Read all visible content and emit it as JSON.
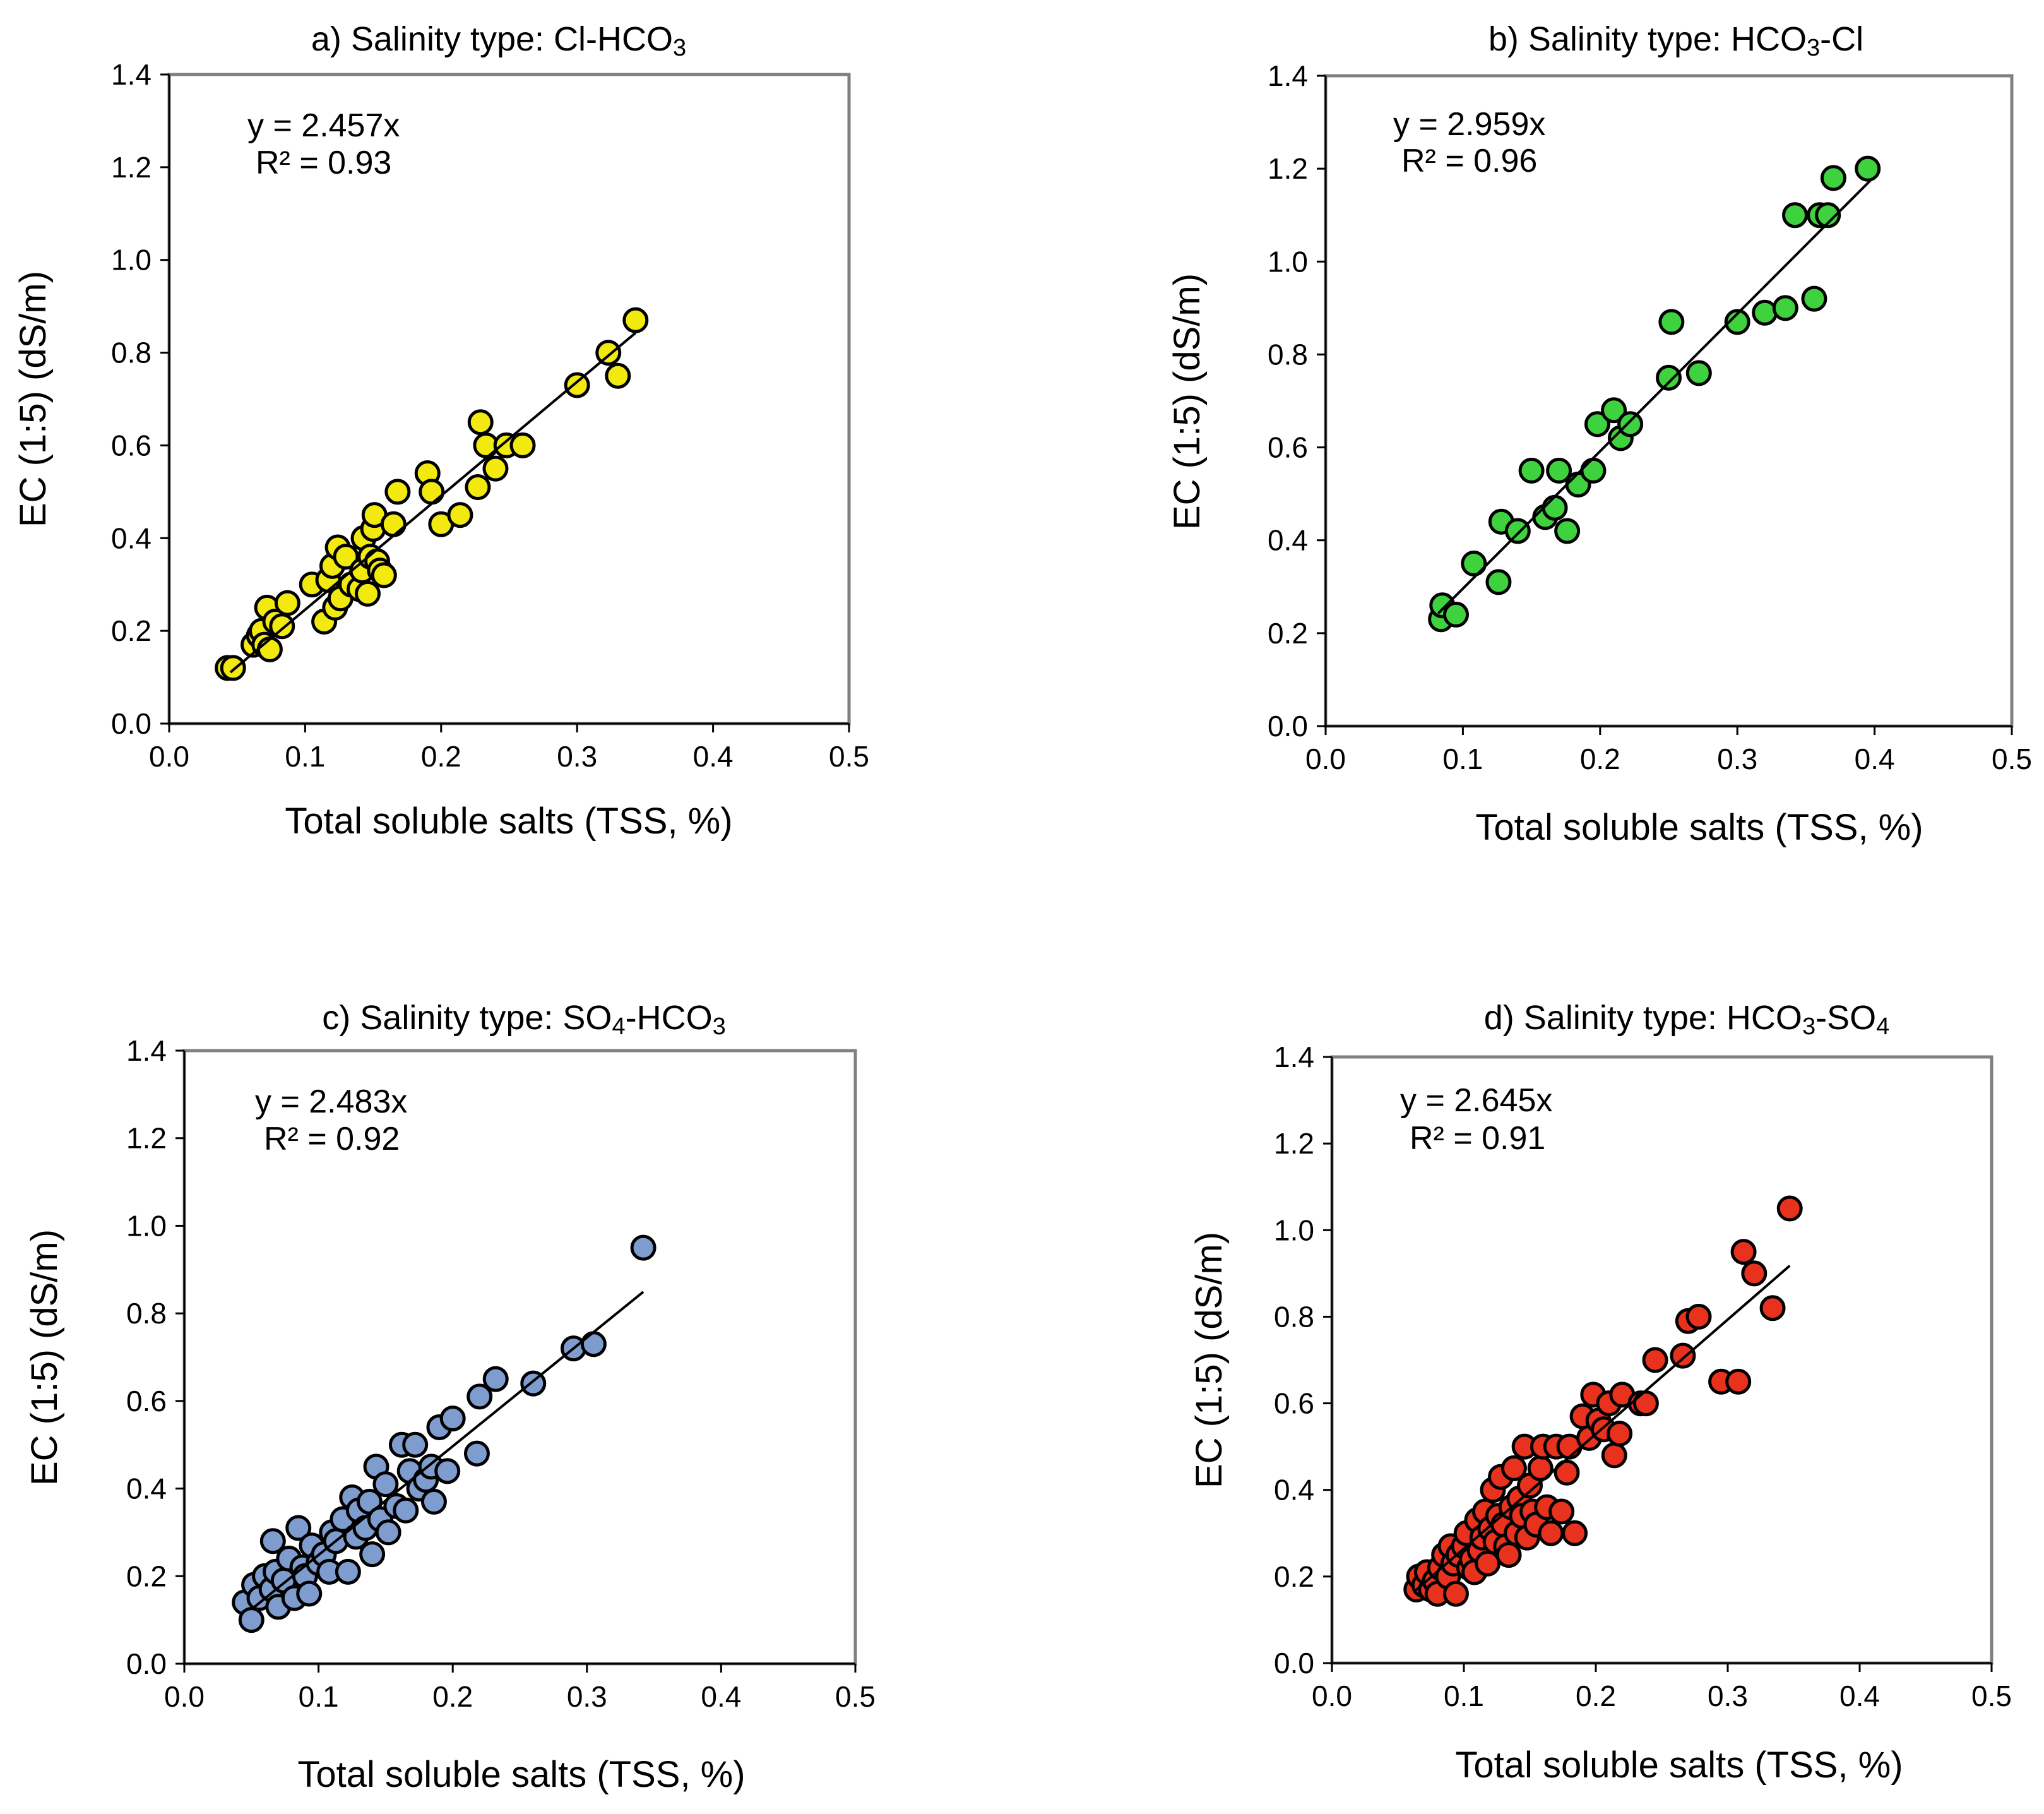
{
  "chart_data": [
    {
      "type": "scatter",
      "title": "a) Salinity type: Cl-HCO3",
      "title_parts": [
        {
          "text": "a) Salinity type: Cl-HCO"
        },
        {
          "text": "3",
          "sub": true
        }
      ],
      "xlabel": "Total soluble salts (TSS, %)",
      "ylabel": "EC (1:5) (dS/m)",
      "xlim": [
        0,
        0.5
      ],
      "ylim": [
        0,
        1.4
      ],
      "xticks": [
        "0.0",
        "0.1",
        "0.2",
        "0.3",
        "0.4",
        "0.5"
      ],
      "yticks": [
        "0.0",
        "0.2",
        "0.4",
        "0.6",
        "0.8",
        "1.0",
        "1.2",
        "1.4"
      ],
      "equation": "y = 2.457x",
      "r2": "R² = 0.93",
      "slope": 2.457,
      "trend_x": [
        0.045,
        0.343
      ],
      "marker_color": "#f2ea0f",
      "x": [
        0.043,
        0.047,
        0.062,
        0.066,
        0.068,
        0.07,
        0.072,
        0.074,
        0.078,
        0.083,
        0.087,
        0.105,
        0.114,
        0.117,
        0.12,
        0.122,
        0.124,
        0.126,
        0.13,
        0.134,
        0.14,
        0.142,
        0.143,
        0.146,
        0.148,
        0.15,
        0.151,
        0.153,
        0.155,
        0.158,
        0.165,
        0.168,
        0.19,
        0.193,
        0.2,
        0.214,
        0.227,
        0.229,
        0.233,
        0.24,
        0.248,
        0.26,
        0.3,
        0.323,
        0.33,
        0.343
      ],
      "y": [
        0.12,
        0.12,
        0.17,
        0.19,
        0.2,
        0.17,
        0.25,
        0.16,
        0.22,
        0.21,
        0.26,
        0.3,
        0.22,
        0.31,
        0.34,
        0.25,
        0.38,
        0.27,
        0.36,
        0.3,
        0.29,
        0.33,
        0.4,
        0.28,
        0.36,
        0.42,
        0.45,
        0.35,
        0.33,
        0.32,
        0.43,
        0.5,
        0.54,
        0.5,
        0.43,
        0.45,
        0.51,
        0.65,
        0.6,
        0.55,
        0.6,
        0.6,
        0.73,
        0.8,
        0.75,
        0.87
      ]
    },
    {
      "type": "scatter",
      "title": "b) Salinity type: HCO3-Cl",
      "title_parts": [
        {
          "text": "b) Salinity type: HCO"
        },
        {
          "text": "3",
          "sub": true
        },
        {
          "text": "-Cl"
        }
      ],
      "xlabel": "Total soluble salts (TSS, %)",
      "ylabel": "EC (1:5) (dS/m)",
      "xlim": [
        0,
        0.5
      ],
      "ylim": [
        0,
        1.4
      ],
      "xticks": [
        "0.0",
        "0.1",
        "0.2",
        "0.3",
        "0.4",
        "0.5"
      ],
      "yticks": [
        "0.0",
        "0.2",
        "0.4",
        "0.6",
        "0.8",
        "1.0",
        "1.2",
        "1.4"
      ],
      "equation": "y = 2.959x",
      "r2": "R² = 0.96",
      "slope": 2.959,
      "trend_x": [
        0.082,
        0.397
      ],
      "marker_color": "#3fd23f",
      "x": [
        0.084,
        0.085,
        0.095,
        0.108,
        0.126,
        0.128,
        0.14,
        0.15,
        0.16,
        0.167,
        0.17,
        0.176,
        0.184,
        0.195,
        0.198,
        0.21,
        0.215,
        0.222,
        0.25,
        0.252,
        0.272,
        0.3,
        0.32,
        0.335,
        0.342,
        0.356,
        0.36,
        0.366,
        0.37,
        0.395
      ],
      "y": [
        0.23,
        0.26,
        0.24,
        0.35,
        0.31,
        0.44,
        0.42,
        0.55,
        0.45,
        0.47,
        0.55,
        0.42,
        0.52,
        0.55,
        0.65,
        0.68,
        0.62,
        0.65,
        0.75,
        0.87,
        0.76,
        0.87,
        0.89,
        0.9,
        1.1,
        0.92,
        1.1,
        1.1,
        1.18,
        1.2
      ]
    },
    {
      "type": "scatter",
      "title": "c) Salinity type: SO4-HCO3",
      "title_parts": [
        {
          "text": "c) Salinity type: SO"
        },
        {
          "text": "4",
          "sub": true
        },
        {
          "text": "-HCO"
        },
        {
          "text": "3",
          "sub": true
        }
      ],
      "xlabel": "Total soluble salts (TSS, %)",
      "ylabel": "EC (1:5) (dS/m)",
      "xlim": [
        0,
        0.5
      ],
      "ylim": [
        0,
        1.4
      ],
      "xticks": [
        "0.0",
        "0.1",
        "0.2",
        "0.3",
        "0.4",
        "0.5"
      ],
      "yticks": [
        "0.0",
        "0.2",
        "0.4",
        "0.6",
        "0.8",
        "1.0",
        "1.2",
        "1.4"
      ],
      "equation": "y = 2.483x",
      "r2": "R² = 0.92",
      "slope": 2.483,
      "trend_x": [
        0.05,
        0.342
      ],
      "marker_color": "#7f9ccf",
      "x": [
        0.045,
        0.05,
        0.052,
        0.056,
        0.06,
        0.065,
        0.066,
        0.068,
        0.07,
        0.074,
        0.078,
        0.082,
        0.085,
        0.088,
        0.09,
        0.093,
        0.095,
        0.1,
        0.104,
        0.108,
        0.11,
        0.113,
        0.118,
        0.122,
        0.125,
        0.128,
        0.13,
        0.135,
        0.138,
        0.14,
        0.143,
        0.146,
        0.15,
        0.152,
        0.158,
        0.162,
        0.165,
        0.168,
        0.172,
        0.175,
        0.18,
        0.184,
        0.186,
        0.19,
        0.196,
        0.2,
        0.218,
        0.22,
        0.232,
        0.26,
        0.29,
        0.305,
        0.342
      ],
      "y": [
        0.14,
        0.1,
        0.18,
        0.15,
        0.2,
        0.17,
        0.28,
        0.21,
        0.13,
        0.19,
        0.24,
        0.15,
        0.31,
        0.22,
        0.2,
        0.16,
        0.27,
        0.23,
        0.25,
        0.21,
        0.3,
        0.28,
        0.33,
        0.21,
        0.38,
        0.29,
        0.35,
        0.31,
        0.37,
        0.25,
        0.45,
        0.33,
        0.41,
        0.3,
        0.36,
        0.5,
        0.35,
        0.44,
        0.5,
        0.4,
        0.42,
        0.45,
        0.37,
        0.54,
        0.44,
        0.56,
        0.48,
        0.61,
        0.65,
        0.64,
        0.72,
        0.73,
        0.95
      ]
    },
    {
      "type": "scatter",
      "title": "d) Salinity type: HCO3-SO4",
      "title_parts": [
        {
          "text": "d) Salinity type: HCO"
        },
        {
          "text": "3",
          "sub": true
        },
        {
          "text": "-SO"
        },
        {
          "text": "4",
          "sub": true
        }
      ],
      "xlabel": "Total soluble salts (TSS, %)",
      "ylabel": "EC (1:5) (dS/m)",
      "xlim": [
        0,
        0.5
      ],
      "ylim": [
        0,
        1.4
      ],
      "xticks": [
        "0.0",
        "0.1",
        "0.2",
        "0.3",
        "0.4",
        "0.5"
      ],
      "yticks": [
        "0.0",
        "0.2",
        "0.4",
        "0.6",
        "0.8",
        "1.0",
        "1.2",
        "1.4"
      ],
      "equation": "y = 2.645x",
      "r2": "R² = 0.91",
      "slope": 2.645,
      "trend_x": [
        0.063,
        0.347
      ],
      "marker_color": "#e8321e",
      "x": [
        0.064,
        0.066,
        0.07,
        0.072,
        0.075,
        0.078,
        0.08,
        0.082,
        0.085,
        0.088,
        0.09,
        0.092,
        0.094,
        0.096,
        0.1,
        0.102,
        0.104,
        0.106,
        0.108,
        0.11,
        0.112,
        0.114,
        0.116,
        0.118,
        0.12,
        0.122,
        0.124,
        0.126,
        0.128,
        0.13,
        0.132,
        0.134,
        0.136,
        0.138,
        0.14,
        0.142,
        0.144,
        0.146,
        0.148,
        0.15,
        0.152,
        0.155,
        0.158,
        0.16,
        0.163,
        0.166,
        0.17,
        0.174,
        0.178,
        0.18,
        0.184,
        0.19,
        0.195,
        0.198,
        0.202,
        0.206,
        0.21,
        0.214,
        0.218,
        0.22,
        0.234,
        0.238,
        0.245,
        0.266,
        0.27,
        0.278,
        0.295,
        0.308,
        0.312,
        0.32,
        0.334,
        0.347
      ],
      "y": [
        0.17,
        0.2,
        0.18,
        0.21,
        0.17,
        0.19,
        0.16,
        0.22,
        0.25,
        0.2,
        0.27,
        0.23,
        0.16,
        0.25,
        0.27,
        0.3,
        0.22,
        0.24,
        0.21,
        0.33,
        0.26,
        0.29,
        0.35,
        0.23,
        0.31,
        0.4,
        0.28,
        0.34,
        0.43,
        0.32,
        0.27,
        0.25,
        0.36,
        0.45,
        0.3,
        0.38,
        0.34,
        0.5,
        0.29,
        0.41,
        0.35,
        0.32,
        0.45,
        0.5,
        0.36,
        0.3,
        0.5,
        0.35,
        0.44,
        0.5,
        0.3,
        0.57,
        0.52,
        0.62,
        0.56,
        0.54,
        0.6,
        0.48,
        0.53,
        0.62,
        0.6,
        0.6,
        0.7,
        0.71,
        0.79,
        0.8,
        0.65,
        0.65,
        0.95,
        0.9,
        0.82,
        1.05
      ]
    }
  ]
}
